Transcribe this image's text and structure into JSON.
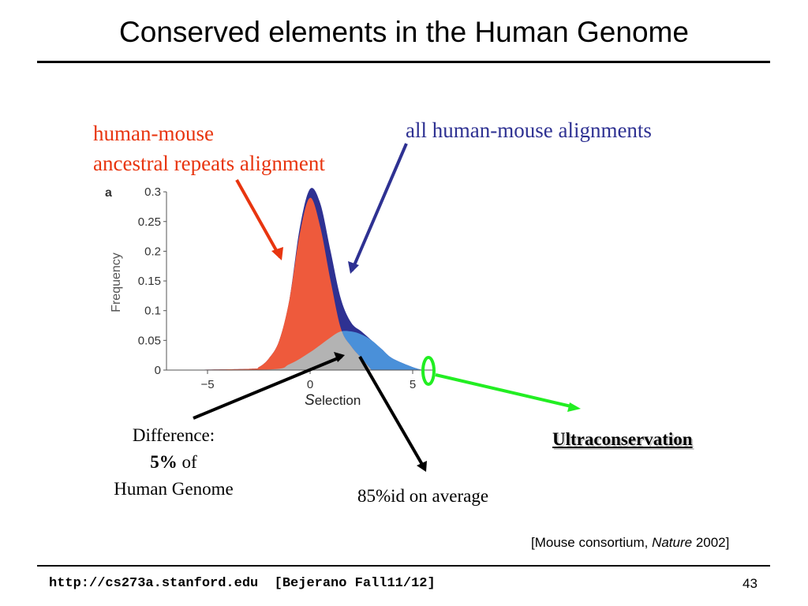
{
  "slide": {
    "title": "Conserved elements in the Human Genome",
    "footer_url": "http://cs273a.stanford.edu  [Bejerano Fall11/12]",
    "page_number": "43",
    "citation_prefix": "[Mouse consortium, ",
    "citation_journal": "Nature",
    "citation_suffix": " 2002]"
  },
  "annotations": {
    "red_line1": "human-mouse",
    "red_line2": "ancestral repeats alignment",
    "blue": "all human-mouse alignments",
    "difference_line1": "Difference:",
    "difference_pct": "5%",
    "difference_of": "of",
    "difference_line3": "Human Genome",
    "average": "85%id on average",
    "ultra": "Ultraconservation"
  },
  "colors": {
    "red": "#e8350f",
    "blue": "#2e3192",
    "green": "#22ee22",
    "neutral_fill": "#ee5a3c",
    "all_fill": "#2e3192",
    "conserved_fill": "#4a90d9",
    "overlap_fill": "#b3b3b3"
  },
  "chart_data": {
    "type": "area",
    "panel_label": "a",
    "xlabel_first": "S",
    "xlabel_rest": "election",
    "ylabel": "Frequency",
    "xlim": [
      -7,
      6
    ],
    "ylim": [
      0,
      0.3
    ],
    "x_ticks": [
      -5,
      0,
      5
    ],
    "x_tick_labels": [
      "−5",
      "0",
      "5"
    ],
    "y_ticks": [
      0,
      0.05,
      0.1,
      0.15,
      0.2,
      0.25,
      0.3
    ],
    "y_tick_labels": [
      "0",
      "0.05",
      "0.1",
      "0.15",
      "0.2",
      "0.25",
      "0.3"
    ],
    "series": [
      {
        "x": [
          -7,
          -3,
          -2.5,
          -2,
          -1.5,
          -1,
          -0.5,
          0,
          0.5,
          1,
          1.5,
          2,
          2.5,
          3,
          3.5,
          4,
          5,
          5.5
        ],
        "values": [
          0,
          0.002,
          0.005,
          0.02,
          0.05,
          0.12,
          0.24,
          0.305,
          0.28,
          0.2,
          0.12,
          0.08,
          0.065,
          0.05,
          0.035,
          0.02,
          0.005,
          0
        ]
      },
      {
        "x": [
          -7,
          -3,
          -2.5,
          -2,
          -1.5,
          -1,
          -0.5,
          0,
          0.5,
          1,
          1.5,
          2,
          2.5,
          3
        ],
        "values": [
          0,
          0.002,
          0.005,
          0.02,
          0.05,
          0.12,
          0.23,
          0.29,
          0.24,
          0.15,
          0.07,
          0.04,
          0.02,
          0
        ]
      },
      {
        "x": [
          -7,
          -2,
          -1,
          0,
          1,
          1.5,
          2,
          2.5,
          3,
          3.5,
          4,
          5,
          5.5
        ],
        "values": [
          0,
          0.001,
          0.01,
          0.03,
          0.055,
          0.065,
          0.065,
          0.06,
          0.05,
          0.035,
          0.02,
          0.005,
          0
        ]
      }
    ]
  }
}
